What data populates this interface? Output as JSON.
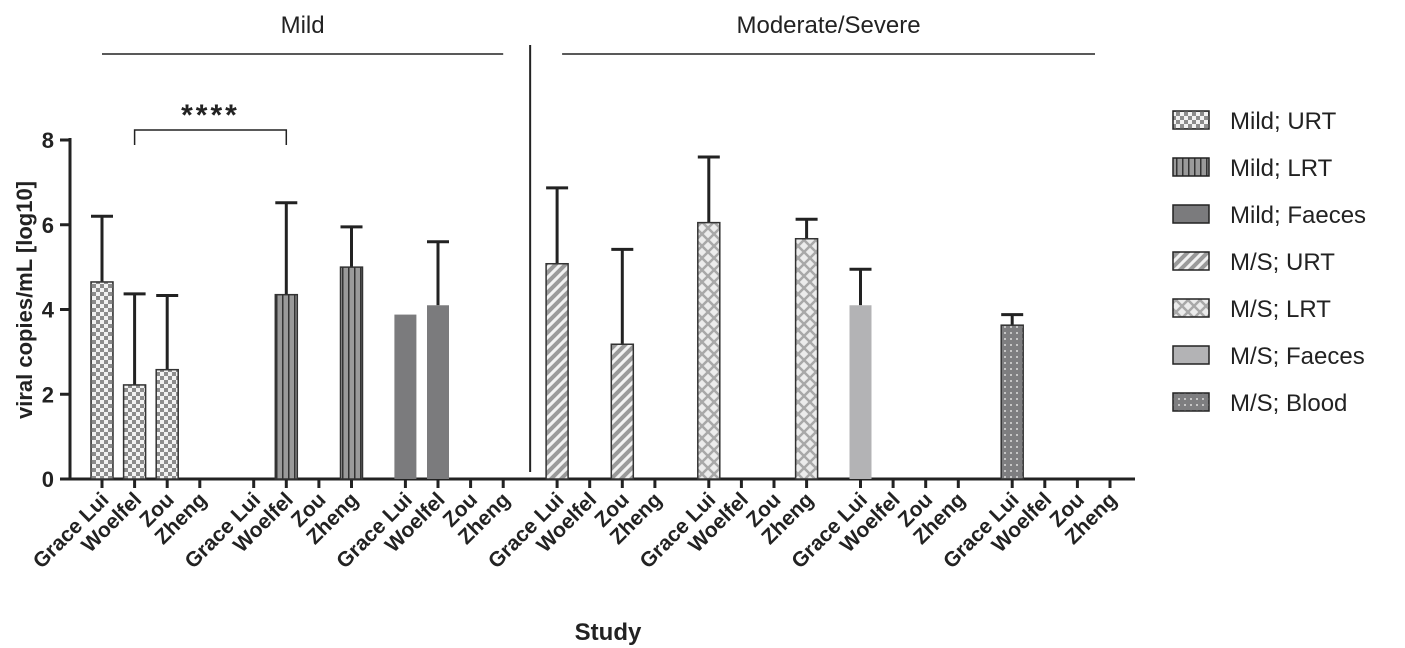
{
  "chart_data": {
    "type": "bar",
    "y_label": "viral copies/mL [log10]",
    "x_label": "Study",
    "categories": [
      "Grace Lui",
      "Woelfel",
      "Zou",
      "Zheng"
    ],
    "ylim": [
      0,
      8
    ],
    "yticks": [
      0,
      2,
      4,
      6,
      8
    ],
    "annotation": "****",
    "legend_position": "right",
    "panels": [
      {
        "title": "Mild",
        "series": [
          {
            "name": "Mild; URT",
            "color": "#8c8c8c",
            "pattern": "checker",
            "values": [
              4.65,
              2.22,
              2.58,
              null
            ],
            "errors": [
              1.55,
              2.15,
              1.75,
              null
            ]
          },
          {
            "name": "Mild; LRT",
            "color": "#9a9a9a",
            "pattern": "vertical",
            "values": [
              null,
              4.35,
              null,
              5.0
            ],
            "errors": [
              null,
              2.17,
              null,
              0.95
            ]
          },
          {
            "name": "Mild; Faeces",
            "color": "#7b7b7d",
            "pattern": "solid",
            "values": [
              3.88,
              4.1,
              null,
              null
            ],
            "errors": [
              null,
              1.5,
              null,
              null
            ]
          }
        ]
      },
      {
        "title": "Moderate/Severe",
        "series": [
          {
            "name": "M/S; URT",
            "color": "#9a9a9a",
            "pattern": "diagonal",
            "values": [
              5.08,
              null,
              3.18,
              null
            ],
            "errors": [
              1.79,
              null,
              2.24,
              null
            ]
          },
          {
            "name": "M/S; LRT",
            "color": "#a8a8a8",
            "pattern": "diamond",
            "values": [
              6.05,
              null,
              null,
              5.67
            ],
            "errors": [
              1.55,
              null,
              null,
              0.46
            ]
          },
          {
            "name": "M/S; Faeces",
            "color": "#b3b3b5",
            "pattern": "solid",
            "values": [
              4.1,
              null,
              null,
              null
            ],
            "errors": [
              0.85,
              null,
              null,
              null
            ]
          },
          {
            "name": "M/S; Blood",
            "color": "#7e7e80",
            "pattern": "dots",
            "values": [
              3.63,
              null,
              null,
              null
            ],
            "errors": [
              0.25,
              null,
              null,
              null
            ]
          }
        ]
      }
    ]
  }
}
